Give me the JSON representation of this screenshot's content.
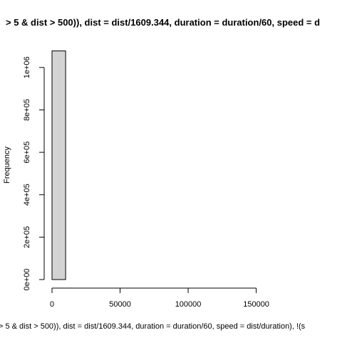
{
  "chart_data": {
    "type": "bar",
    "title": "> 5 & dist > 500)), dist = dist/1609.344, duration = duration/60, speed = d",
    "xlabel": "> 5 & dist > 500)), dist = dist/1609.344, duration = duration/60, speed = dist/duration), !(s",
    "ylabel": "Frequency",
    "xlim": [
      0,
      190000
    ],
    "ylim": [
      0,
      1080000
    ],
    "x_ticks": [
      {
        "value": 0,
        "label": "0"
      },
      {
        "value": 50000,
        "label": "50000"
      },
      {
        "value": 100000,
        "label": "100000"
      },
      {
        "value": 150000,
        "label": "150000"
      }
    ],
    "y_ticks": [
      {
        "value": 0,
        "label": "0e+00"
      },
      {
        "value": 200000,
        "label": "2e+05"
      },
      {
        "value": 400000,
        "label": "4e+05"
      },
      {
        "value": 600000,
        "label": "6e+05"
      },
      {
        "value": 800000,
        "label": "8e+05"
      },
      {
        "value": 1000000,
        "label": "1e+06"
      }
    ],
    "bins": [
      {
        "x0": 0,
        "x1": 10000,
        "count": 1078000
      }
    ],
    "bar_fill": "#d3d3d3",
    "bar_stroke": "#000000",
    "grid": false,
    "legend": "none"
  }
}
